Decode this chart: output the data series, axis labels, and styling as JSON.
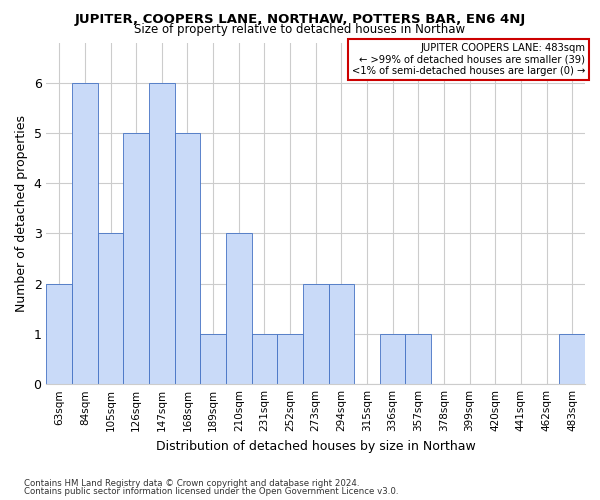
{
  "title": "JUPITER, COOPERS LANE, NORTHAW, POTTERS BAR, EN6 4NJ",
  "subtitle": "Size of property relative to detached houses in Northaw",
  "xlabel": "Distribution of detached houses by size in Northaw",
  "ylabel": "Number of detached properties",
  "categories": [
    "63sqm",
    "84sqm",
    "105sqm",
    "126sqm",
    "147sqm",
    "168sqm",
    "189sqm",
    "210sqm",
    "231sqm",
    "252sqm",
    "273sqm",
    "294sqm",
    "315sqm",
    "336sqm",
    "357sqm",
    "378sqm",
    "399sqm",
    "420sqm",
    "441sqm",
    "462sqm",
    "483sqm"
  ],
  "values": [
    2,
    6,
    3,
    5,
    6,
    5,
    1,
    3,
    1,
    1,
    2,
    2,
    0,
    1,
    1,
    0,
    0,
    0,
    0,
    0,
    1
  ],
  "bar_color": "#c9daf8",
  "bar_edge_color": "#4472c4",
  "ylim": [
    0,
    6.8
  ],
  "yticks": [
    0,
    1,
    2,
    3,
    4,
    5,
    6
  ],
  "grid_color": "#cccccc",
  "background_color": "#ffffff",
  "annotation_lines": [
    "JUPITER COOPERS LANE: 483sqm",
    "← >99% of detached houses are smaller (39)",
    "<1% of semi-detached houses are larger (0) →"
  ],
  "annotation_box_edge_color": "#cc0000",
  "footer_line1": "Contains HM Land Registry data © Crown copyright and database right 2024.",
  "footer_line2": "Contains public sector information licensed under the Open Government Licence v3.0."
}
